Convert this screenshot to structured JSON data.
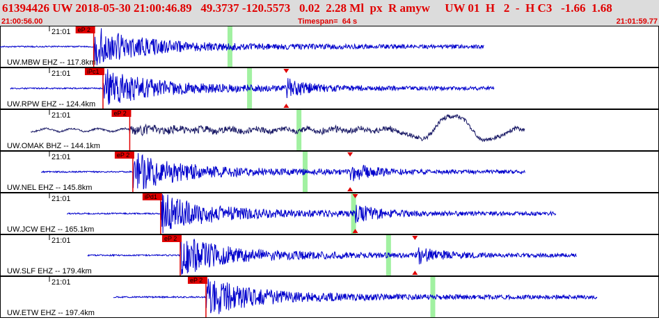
{
  "header": {
    "title": "61394426 UW 2018-05-30 21:00:46.89   49.3737 -120.5573   0.02  2.28 Ml  px  R amyw     UW 01  H   2  -  H C3   -1.66  1.68",
    "start_time": "21:00:56.00",
    "end_time": "21:01:59.77",
    "timespan_label": "Timespan=",
    "timespan_value": "64 s"
  },
  "colors": {
    "trace": "#0000cc",
    "trace_dark": "#1a1a66",
    "pick": "#e00000",
    "window": "#90ee90",
    "header_bg": "#dcdcdc",
    "header_text": "#e00000"
  },
  "chart_data": {
    "type": "line",
    "x_unit": "s",
    "x_start": 0,
    "x_end": 64,
    "time_tick_label": "21:01",
    "channels": [
      {
        "label": "UW.MBW EHZ -- 117.8km",
        "pick": "eP 2",
        "p_time": 9.1,
        "s_time": null,
        "window": 22.3,
        "trace_start": 0,
        "trace_end": 47,
        "amp": 1.0,
        "color": "#0000cc",
        "long_period": false
      },
      {
        "label": "UW.RPW EHZ -- 124.4km",
        "pick": "iPc1",
        "p_time": 10.0,
        "s_time": 27.8,
        "window": 24.2,
        "trace_start": 1,
        "trace_end": 48,
        "amp": 1.0,
        "color": "#0000cc",
        "long_period": false
      },
      {
        "label": "UW.OMAK BHZ -- 144.1km",
        "pick": "eP 2",
        "p_time": 12.6,
        "s_time": null,
        "window": 29.0,
        "trace_start": 3,
        "trace_end": 51,
        "amp": 1.0,
        "color": "#1a1a66",
        "long_period": true
      },
      {
        "label": "UW.NEL EHZ -- 145.8km",
        "pick": "eP 2",
        "p_time": 12.9,
        "s_time": 34.0,
        "window": 29.6,
        "trace_start": 4,
        "trace_end": 51,
        "amp": 1.0,
        "color": "#0000cc",
        "long_period": false
      },
      {
        "label": "UW.JCW EHZ -- 165.1km",
        "pick": "iPd1",
        "p_time": 15.6,
        "s_time": 34.5,
        "window": 34.3,
        "trace_start": 6.5,
        "trace_end": 54,
        "amp": 1.0,
        "color": "#0000cc",
        "long_period": false
      },
      {
        "label": "UW.SLF EHZ -- 179.4km",
        "pick": "eP 2",
        "p_time": 17.5,
        "s_time": 40.3,
        "window": 37.7,
        "trace_start": 8.5,
        "trace_end": 56,
        "amp": 1.0,
        "color": "#0000cc",
        "long_period": false
      },
      {
        "label": "UW.ETW EHZ -- 197.4km",
        "pick": "eP 2",
        "p_time": 20.0,
        "s_time": null,
        "window": 42.0,
        "trace_start": 11,
        "trace_end": 58,
        "amp": 1.0,
        "color": "#0000cc",
        "long_period": false
      }
    ]
  }
}
